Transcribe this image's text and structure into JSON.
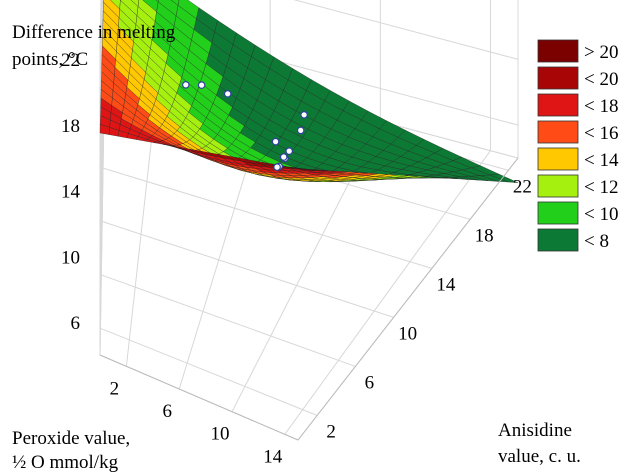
{
  "chart_data": {
    "type": "surface3d",
    "title": "",
    "zlabel": [
      "Difference in melting",
      "points, °C"
    ],
    "xlabel": [
      "Peroxide value,",
      "½ O mmol/kg"
    ],
    "ylabel": [
      "Anisidine",
      "value, c. u."
    ],
    "z_ticks": [
      22,
      18,
      14,
      10,
      6
    ],
    "x_ticks": [
      2,
      6,
      10,
      14
    ],
    "y_ticks": [
      22,
      18,
      14,
      10,
      6,
      2
    ],
    "xlim": [
      0,
      15
    ],
    "ylim": [
      0,
      23
    ],
    "zlim": [
      4,
      22
    ],
    "legend": {
      "placement": "right",
      "items": [
        {
          "label": "> 20",
          "color": "#7b0000"
        },
        {
          "label": "< 20",
          "color": "#a80606"
        },
        {
          "label": "< 18",
          "color": "#df1515"
        },
        {
          "label": "< 16",
          "color": "#ff4b15"
        },
        {
          "label": "< 14",
          "color": "#ffc800"
        },
        {
          "label": "< 12",
          "color": "#a6f010"
        },
        {
          "label": "< 10",
          "color": "#22cf1a"
        },
        {
          "label": "< 8",
          "color": "#0c7a34"
        }
      ]
    },
    "surface_corners": {
      "peroxide_low_anisidine_low": 17.5,
      "peroxide_high_anisidine_low": 20.5,
      "peroxide_low_anisidine_high": 10.5,
      "peroxide_high_anisidine_high": 2.5
    },
    "observed_points": [
      {
        "peroxide": 13.5,
        "anisidine": 3.0,
        "z": 21.0
      },
      {
        "peroxide": 13.0,
        "anisidine": 3.5,
        "z": 19.5
      },
      {
        "peroxide": 12.0,
        "anisidine": 4.0,
        "z": 17.5
      },
      {
        "peroxide": 11.5,
        "anisidine": 4.5,
        "z": 16.5
      },
      {
        "peroxide": 10.5,
        "anisidine": 6.0,
        "z": 14.5
      },
      {
        "peroxide": 10.0,
        "anisidine": 7.0,
        "z": 13.5
      },
      {
        "peroxide": 9.5,
        "anisidine": 9.5,
        "z": 12.0
      },
      {
        "peroxide": 8.5,
        "anisidine": 11.5,
        "z": 11.0
      },
      {
        "peroxide": 3.5,
        "anisidine": 16.5,
        "z": 8.5
      },
      {
        "peroxide": 4.0,
        "anisidine": 18.0,
        "z": 7.5
      },
      {
        "peroxide": 5.0,
        "anisidine": 18.5,
        "z": 7.0
      }
    ]
  }
}
